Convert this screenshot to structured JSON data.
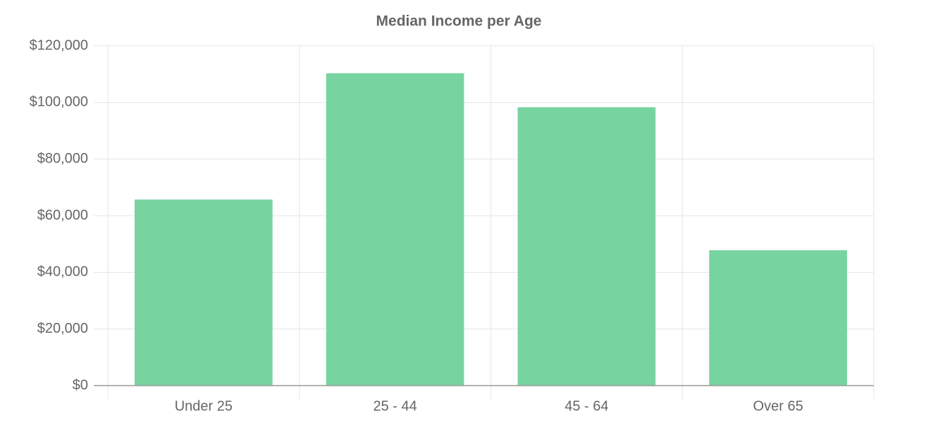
{
  "chart_data": {
    "type": "bar",
    "title": "Median Income per Age",
    "categories": [
      "Under 25",
      "25 - 44",
      "45 - 64",
      "Over 65"
    ],
    "values": [
      65700,
      110300,
      98300,
      47800
    ],
    "color": "#77d4a1",
    "ylim": [
      0,
      120000
    ],
    "yticks": [
      {
        "value": 0,
        "label": "$0"
      },
      {
        "value": 20000,
        "label": "$20,000"
      },
      {
        "value": 40000,
        "label": "$40,000"
      },
      {
        "value": 60000,
        "label": "$60,000"
      },
      {
        "value": 80000,
        "label": "$80,000"
      },
      {
        "value": 100000,
        "label": "$100,000"
      },
      {
        "value": 120000,
        "label": "$120,000"
      }
    ],
    "grid": true
  }
}
